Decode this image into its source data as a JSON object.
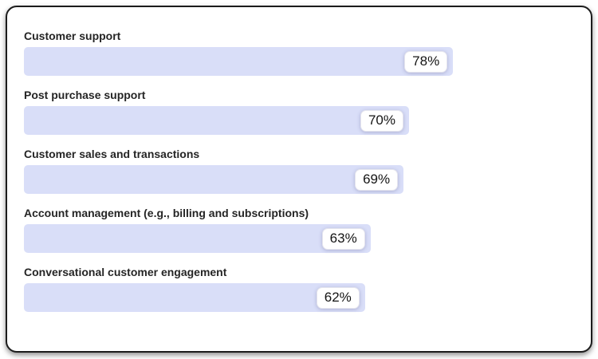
{
  "chart_data": {
    "type": "bar",
    "orientation": "horizontal",
    "title": "",
    "xlabel": "",
    "ylabel": "",
    "categories": [
      "Customer support",
      "Post purchase support",
      "Customer sales and transactions",
      "Account management (e.g., billing and subscriptions)",
      "Conversational customer engagement"
    ],
    "values": [
      78,
      70,
      69,
      63,
      62
    ],
    "value_labels": [
      "78%",
      "70%",
      "69%",
      "63%",
      "62%"
    ],
    "xlim": [
      0,
      100
    ],
    "grid": false,
    "legend": false,
    "colors": {
      "bar_fill": "#d9def8",
      "category_label": "#252525",
      "value_text": "#141414",
      "value_box_bg": "#ffffff",
      "value_box_border": "#e5e5ee",
      "card_bg": "#ffffff",
      "card_border": "#1c1c1c"
    }
  }
}
